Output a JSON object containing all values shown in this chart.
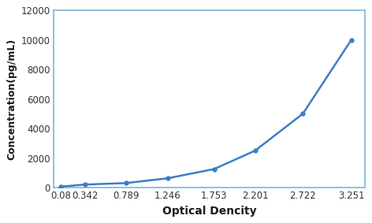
{
  "x": [
    0.08,
    0.342,
    0.789,
    1.246,
    1.753,
    2.201,
    2.722,
    3.251
  ],
  "y": [
    62,
    200,
    300,
    625,
    1250,
    2500,
    5000,
    10000
  ],
  "line_color": "#3A7EC6",
  "marker_color": "#3A7EC6",
  "xlabel": "Optical Dencity",
  "ylabel": "Concentration(pg/mL)",
  "ylim": [
    0,
    12000
  ],
  "yticks": [
    0,
    2000,
    4000,
    6000,
    8000,
    10000,
    12000
  ],
  "xticks": [
    0.08,
    0.342,
    0.789,
    1.246,
    1.753,
    2.201,
    2.722,
    3.251
  ],
  "xlim_min": 0.0,
  "xlim_max": 3.4,
  "background_color": "#FFFFFF",
  "plot_bg_color": "#FFFFFF",
  "spine_color": "#7EB6D9",
  "line_width": 1.8,
  "marker_size": 4,
  "xlabel_fontsize": 10,
  "ylabel_fontsize": 9,
  "tick_fontsize": 8.5
}
